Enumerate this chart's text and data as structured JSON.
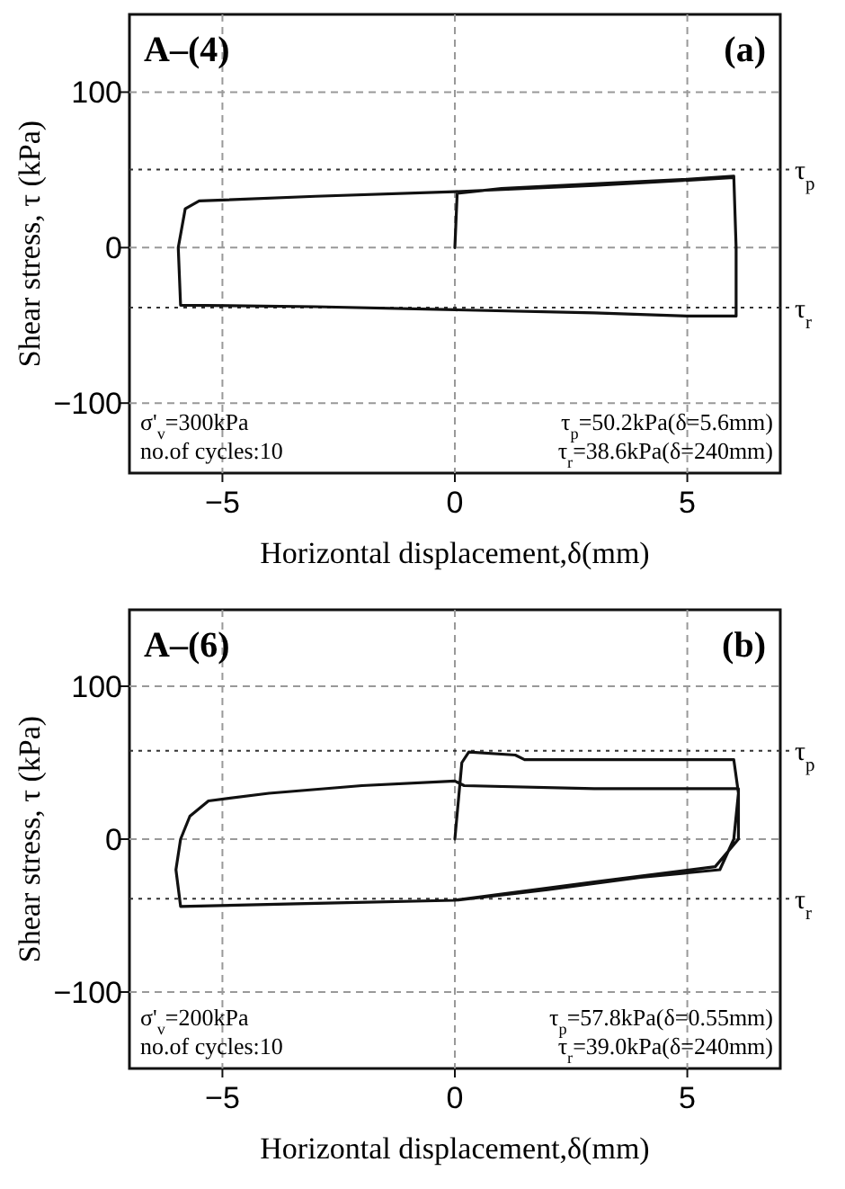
{
  "chart_data": [
    {
      "type": "line",
      "xlabel": "Horizontal displacement,δ(mm)",
      "ylabel": "Shear stress, τ (kPa)",
      "annotations": [
        "A–(4)",
        "(a)",
        "σ'$_{v}$=300kPa",
        "no.of cycles:10",
        "τ$_{p}$=50.2kPa(δ=5.6mm)",
        "τ$_{r}$=38.6kPa(δ=240mm)"
      ],
      "series": [
        {
          "color": "#111111",
          "x": [
            0,
            0.05,
            1,
            3,
            5,
            6.0,
            6.05,
            6.05,
            5,
            3,
            0,
            -3,
            -5.9,
            -5.95,
            -5.8,
            -5.5,
            -3,
            0,
            3,
            6
          ],
          "values": [
            0,
            35,
            38,
            41,
            44,
            46,
            0,
            -44,
            -44,
            -42,
            -40,
            -38,
            -37,
            0,
            25,
            30,
            33,
            36,
            40,
            45
          ]
        }
      ],
      "xlim": [
        -7,
        7
      ],
      "ylim": [
        -145,
        150
      ],
      "xticks": [
        -5,
        0,
        5
      ],
      "yticks": [
        -100,
        0,
        100
      ],
      "grid": true,
      "line_style": "solid",
      "ref_lines": [
        {
          "axis": "y",
          "value": 50.2,
          "label": "τ$_{p}$",
          "line_style": "dotted"
        },
        {
          "axis": "y",
          "value": -38.6,
          "label": "τ$_{r}$",
          "line_style": "dotted"
        }
      ]
    },
    {
      "type": "line",
      "xlabel": "Horizontal displacement,δ(mm)",
      "ylabel": "Shear stress, τ (kPa)",
      "annotations": [
        "A–(6)",
        "(b)",
        "σ'$_{v}$=200kPa",
        "no.of cycles:10",
        "τ$_{p}$=57.8kPa(δ=0.55mm)",
        "τ$_{r}$=39.0kPa(δ=240mm)"
      ],
      "series": [
        {
          "color": "#111111",
          "x": [
            0,
            0.15,
            0.3,
            1.3,
            1.5,
            3,
            6.0,
            6.1,
            6.0,
            5.7,
            4,
            2,
            0,
            -3,
            -5.9,
            -6,
            -5.9,
            -5.7,
            -5.3,
            -4,
            -2,
            0,
            0.2,
            3,
            6.1,
            6.1,
            5.6,
            3,
            0,
            -5.9
          ],
          "values": [
            0,
            50,
            57,
            55,
            52,
            52,
            52,
            30,
            0,
            -20,
            -25,
            -33,
            -40,
            -42,
            -44,
            -20,
            0,
            15,
            25,
            30,
            35,
            38,
            35,
            33,
            33,
            0,
            -18,
            -28,
            -40,
            -44
          ]
        }
      ],
      "xlim": [
        -7,
        7
      ],
      "ylim": [
        -150,
        150
      ],
      "xticks": [
        -5,
        0,
        5
      ],
      "yticks": [
        -100,
        0,
        100
      ],
      "grid": true,
      "line_style": "solid",
      "ref_lines": [
        {
          "axis": "y",
          "value": 57.8,
          "label": "τ$_{p}$",
          "line_style": "dotted"
        },
        {
          "axis": "y",
          "value": -39.0,
          "label": "τ$_{r}$",
          "line_style": "dotted"
        }
      ]
    }
  ]
}
